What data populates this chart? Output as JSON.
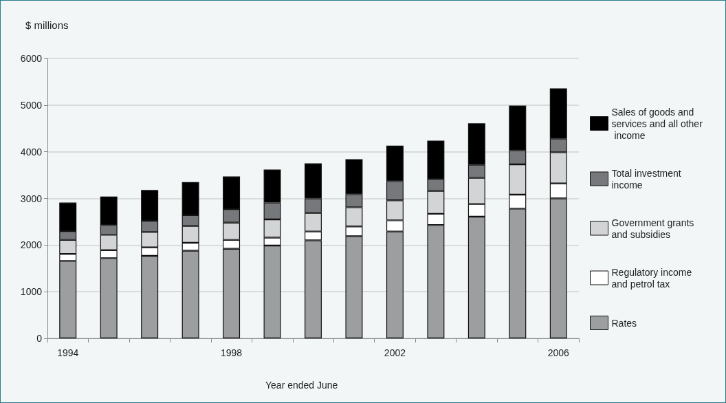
{
  "chart_data": {
    "type": "bar",
    "stacked": true,
    "ylabel": "$ millions",
    "xlabel": "Year ended June",
    "categories": [
      "1994",
      null,
      null,
      null,
      "1998",
      null,
      null,
      null,
      "2002",
      null,
      null,
      null,
      "2006"
    ],
    "series": [
      {
        "name": "Rates",
        "color": "#9d9ea0",
        "values": [
          1660,
          1720,
          1770,
          1880,
          1920,
          1990,
          2100,
          2190,
          2290,
          2430,
          2610,
          2780,
          3000
        ]
      },
      {
        "name": "Regulatory income and petrol tax",
        "color": "#ffffff",
        "values": [
          150,
          170,
          180,
          170,
          190,
          170,
          190,
          210,
          240,
          240,
          270,
          300,
          320
        ]
      },
      {
        "name": "Government grants and subsidies",
        "color": "#d3d4d6",
        "values": [
          300,
          330,
          330,
          360,
          370,
          390,
          400,
          410,
          430,
          490,
          560,
          650,
          670
        ]
      },
      {
        "name": "Total investment income",
        "color": "#77787b",
        "values": [
          190,
          210,
          240,
          230,
          290,
          360,
          310,
          280,
          410,
          260,
          280,
          300,
          290
        ]
      },
      {
        "name": "Sales of goods and services and all other income",
        "color": "#000000",
        "values": [
          610,
          610,
          660,
          710,
          700,
          710,
          750,
          750,
          760,
          820,
          890,
          960,
          1080
        ]
      }
    ],
    "ylim": [
      0,
      6000
    ],
    "yticks": [
      0,
      1000,
      2000,
      3000,
      4000,
      5000,
      6000
    ],
    "grid": "y",
    "legend": "right"
  }
}
